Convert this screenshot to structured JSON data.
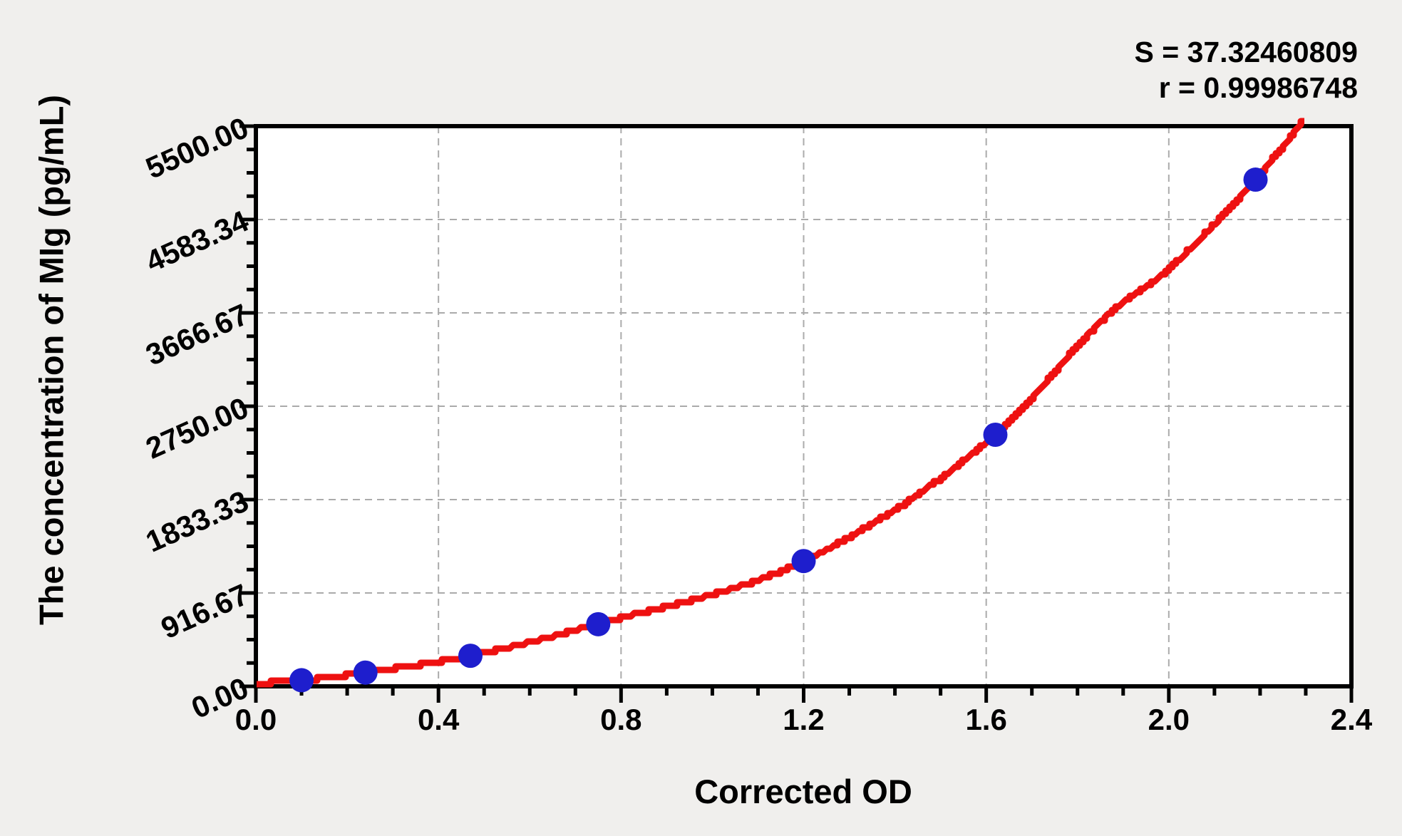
{
  "stats": {
    "s": "S = 37.32460809",
    "r": "r = 0.99986748"
  },
  "axes": {
    "x": {
      "title": "Corrected OD",
      "min": 0,
      "max": 2.4,
      "major_step": 0.4,
      "minor_step": 0.1,
      "tick_labels": [
        "0.0",
        "0.4",
        "0.8",
        "1.2",
        "1.6",
        "2.0",
        "2.4"
      ]
    },
    "y": {
      "title": "The concentration of MIg (pg/mL)",
      "min": 0,
      "max": 5500,
      "majors": 6,
      "minor_divisions": 4,
      "tick_labels": [
        "0.00",
        "916.67",
        "1833.33",
        "2750.00",
        "3666.67",
        "4583.34",
        "5500.00"
      ]
    }
  },
  "chart_data": {
    "type": "scatter",
    "title": "",
    "xlabel": "Corrected OD",
    "ylabel": "The concentration of MIg (pg/mL)",
    "xlim": [
      0,
      2.4
    ],
    "ylim": [
      0,
      5500
    ],
    "grid": true,
    "annotations": [
      "S = 37.32460809",
      "r = 0.99986748"
    ],
    "series": [
      {
        "name": "standard-points",
        "marker": "circle",
        "points": [
          [
            0.1,
            60
          ],
          [
            0.24,
            135
          ],
          [
            0.47,
            300
          ],
          [
            0.75,
            610
          ],
          [
            1.2,
            1230
          ],
          [
            1.62,
            2470
          ],
          [
            2.19,
            4975
          ]
        ]
      },
      {
        "name": "fitted-curve",
        "marker": "none",
        "anchors": [
          [
            0.0,
            30
          ],
          [
            0.1,
            58
          ],
          [
            0.24,
            135
          ],
          [
            0.47,
            300
          ],
          [
            0.75,
            612
          ],
          [
            1.2,
            1230
          ],
          [
            1.62,
            2470
          ],
          [
            1.87,
            3660
          ],
          [
            2.0,
            4095
          ],
          [
            2.19,
            4975
          ],
          [
            2.34,
            5820
          ]
        ]
      }
    ]
  },
  "colors": {
    "curve": "#ee1111",
    "points": "#1e1ecd",
    "grid": "#ababab",
    "axis": "#000000",
    "plot_bg": "#ffffff",
    "page_bg": "#f0efed"
  }
}
